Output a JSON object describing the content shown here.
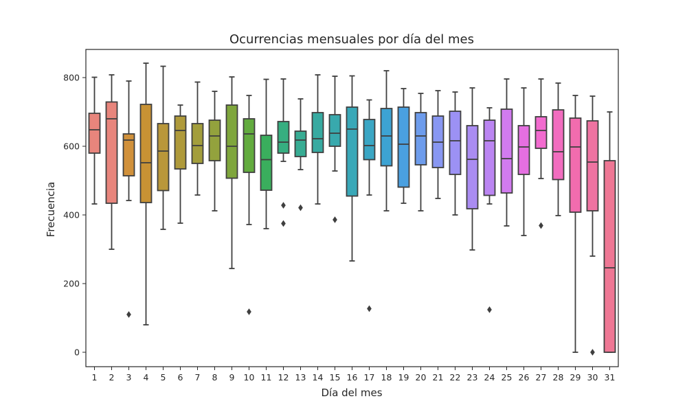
{
  "chart_data": {
    "type": "boxplot",
    "title": "Ocurrencias mensuales por día del mes",
    "xlabel": "Día del mes",
    "ylabel": "Frecuencia",
    "ylim": [
      -42,
      882
    ],
    "yticks": [
      0,
      200,
      400,
      600,
      800
    ],
    "categories": [
      "1",
      "2",
      "3",
      "4",
      "5",
      "6",
      "7",
      "8",
      "9",
      "10",
      "11",
      "12",
      "13",
      "14",
      "15",
      "16",
      "17",
      "18",
      "19",
      "20",
      "21",
      "22",
      "23",
      "24",
      "25",
      "26",
      "27",
      "28",
      "29",
      "30",
      "31"
    ],
    "colors": [
      "#e8857c",
      "#e8857c",
      "#d1913b",
      "#c89234",
      "#b9973a",
      "#af9a3b",
      "#a39e3c",
      "#93a23d",
      "#7fa63c",
      "#62ab3e",
      "#3aae5d",
      "#36ae80",
      "#37ac93",
      "#37aaa1",
      "#38a9ad",
      "#39a8b8",
      "#3aa6c4",
      "#3da3d3",
      "#4aa0e0",
      "#6d9cec",
      "#8897f2",
      "#9c91f4",
      "#aa8cf2",
      "#bb85f2",
      "#d17bef",
      "#e56fe1",
      "#f26bcf",
      "#f26dbf",
      "#f16cae",
      "#ef73a1",
      "#ee7794"
    ],
    "boxes": [
      {
        "day": "1",
        "whislo": 432,
        "q1": 580,
        "median": 648,
        "q3": 696,
        "whishi": 801,
        "fliers": []
      },
      {
        "day": "2",
        "whislo": 300,
        "q1": 434,
        "median": 680,
        "q3": 729,
        "whishi": 808,
        "fliers": []
      },
      {
        "day": "3",
        "whislo": 442,
        "q1": 514,
        "median": 618,
        "q3": 636,
        "whishi": 790,
        "fliers": [
          110
        ]
      },
      {
        "day": "4",
        "whislo": 80,
        "q1": 436,
        "median": 552,
        "q3": 722,
        "whishi": 842,
        "fliers": []
      },
      {
        "day": "5",
        "whislo": 358,
        "q1": 471,
        "median": 586,
        "q3": 666,
        "whishi": 833,
        "fliers": []
      },
      {
        "day": "6",
        "whislo": 376,
        "q1": 534,
        "median": 646,
        "q3": 688,
        "whishi": 720,
        "fliers": []
      },
      {
        "day": "7",
        "whislo": 458,
        "q1": 550,
        "median": 602,
        "q3": 666,
        "whishi": 787,
        "fliers": []
      },
      {
        "day": "8",
        "whislo": 412,
        "q1": 558,
        "median": 630,
        "q3": 676,
        "whishi": 760,
        "fliers": []
      },
      {
        "day": "9",
        "whislo": 244,
        "q1": 507,
        "median": 600,
        "q3": 720,
        "whishi": 802,
        "fliers": []
      },
      {
        "day": "10",
        "whislo": 372,
        "q1": 524,
        "median": 636,
        "q3": 680,
        "whishi": 748,
        "fliers": [
          118
        ]
      },
      {
        "day": "11",
        "whislo": 360,
        "q1": 472,
        "median": 561,
        "q3": 632,
        "whishi": 795,
        "fliers": []
      },
      {
        "day": "12",
        "whislo": 556,
        "q1": 580,
        "median": 612,
        "q3": 672,
        "whishi": 796,
        "fliers": [
          428,
          375
        ]
      },
      {
        "day": "13",
        "whislo": 532,
        "q1": 570,
        "median": 618,
        "q3": 644,
        "whishi": 738,
        "fliers": [
          421
        ]
      },
      {
        "day": "14",
        "whislo": 432,
        "q1": 582,
        "median": 622,
        "q3": 698,
        "whishi": 808,
        "fliers": []
      },
      {
        "day": "15",
        "whislo": 528,
        "q1": 600,
        "median": 638,
        "q3": 692,
        "whishi": 804,
        "fliers": [
          386
        ]
      },
      {
        "day": "16",
        "whislo": 266,
        "q1": 455,
        "median": 650,
        "q3": 714,
        "whishi": 805,
        "fliers": []
      },
      {
        "day": "17",
        "whislo": 458,
        "q1": 561,
        "median": 602,
        "q3": 678,
        "whishi": 735,
        "fliers": [
          127
        ]
      },
      {
        "day": "18",
        "whislo": 412,
        "q1": 543,
        "median": 630,
        "q3": 710,
        "whishi": 820,
        "fliers": []
      },
      {
        "day": "19",
        "whislo": 434,
        "q1": 481,
        "median": 606,
        "q3": 714,
        "whishi": 768,
        "fliers": []
      },
      {
        "day": "20",
        "whislo": 412,
        "q1": 546,
        "median": 630,
        "q3": 698,
        "whishi": 754,
        "fliers": []
      },
      {
        "day": "21",
        "whislo": 448,
        "q1": 538,
        "median": 612,
        "q3": 688,
        "whishi": 762,
        "fliers": []
      },
      {
        "day": "22",
        "whislo": 400,
        "q1": 518,
        "median": 616,
        "q3": 702,
        "whishi": 758,
        "fliers": []
      },
      {
        "day": "23",
        "whislo": 298,
        "q1": 418,
        "median": 562,
        "q3": 660,
        "whishi": 770,
        "fliers": []
      },
      {
        "day": "24",
        "whislo": 432,
        "q1": 457,
        "median": 616,
        "q3": 676,
        "whishi": 712,
        "fliers": [
          124
        ]
      },
      {
        "day": "25",
        "whislo": 368,
        "q1": 464,
        "median": 564,
        "q3": 708,
        "whishi": 796,
        "fliers": []
      },
      {
        "day": "26",
        "whislo": 340,
        "q1": 518,
        "median": 598,
        "q3": 660,
        "whishi": 770,
        "fliers": []
      },
      {
        "day": "27",
        "whislo": 506,
        "q1": 594,
        "median": 646,
        "q3": 686,
        "whishi": 796,
        "fliers": [
          369
        ]
      },
      {
        "day": "28",
        "whislo": 398,
        "q1": 503,
        "median": 584,
        "q3": 706,
        "whishi": 784,
        "fliers": []
      },
      {
        "day": "29",
        "whislo": 0,
        "q1": 408,
        "median": 598,
        "q3": 682,
        "whishi": 748,
        "fliers": []
      },
      {
        "day": "30",
        "whislo": 280,
        "q1": 412,
        "median": 554,
        "q3": 674,
        "whishi": 746,
        "fliers": [
          0
        ]
      },
      {
        "day": "31",
        "whislo": 0,
        "q1": 0,
        "median": 246,
        "q3": 558,
        "whishi": 700,
        "fliers": []
      }
    ],
    "grid": false,
    "legend": "none"
  }
}
